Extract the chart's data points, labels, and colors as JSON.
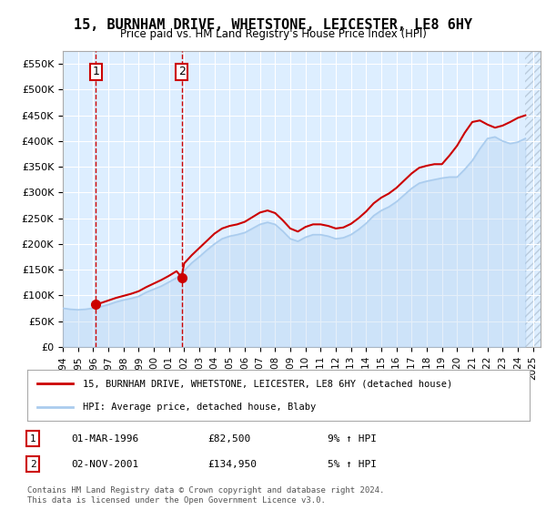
{
  "title": "15, BURNHAM DRIVE, WHETSTONE, LEICESTER, LE8 6HY",
  "subtitle": "Price paid vs. HM Land Registry's House Price Index (HPI)",
  "ylabel": "",
  "ylim": [
    0,
    575000
  ],
  "yticks": [
    0,
    50000,
    100000,
    150000,
    200000,
    250000,
    300000,
    350000,
    400000,
    450000,
    500000,
    550000
  ],
  "ytick_labels": [
    "£0",
    "£50K",
    "£100K",
    "£150K",
    "£200K",
    "£250K",
    "£300K",
    "£350K",
    "£400K",
    "£450K",
    "£500K",
    "£550K"
  ],
  "background_color": "#ffffff",
  "plot_bg_color": "#ddeeff",
  "hatch_color": "#bbccdd",
  "grid_color": "#ffffff",
  "sale1_date": 1996.17,
  "sale1_price": 82500,
  "sale2_date": 2001.84,
  "sale2_price": 134950,
  "sale1_label": "1",
  "sale2_label": "2",
  "sale_color": "#cc0000",
  "hpi_color": "#aaccee",
  "legend_sale": "15, BURNHAM DRIVE, WHETSTONE, LEICESTER, LE8 6HY (detached house)",
  "legend_hpi": "HPI: Average price, detached house, Blaby",
  "footer1": "Contains HM Land Registry data © Crown copyright and database right 2024.",
  "footer2": "This data is licensed under the Open Government Licence v3.0.",
  "table_rows": [
    {
      "num": "1",
      "date": "01-MAR-1996",
      "price": "£82,500",
      "hpi": "9% ↑ HPI"
    },
    {
      "num": "2",
      "date": "02-NOV-2001",
      "price": "£134,950",
      "hpi": "5% ↑ HPI"
    }
  ],
  "hpi_data": {
    "years": [
      1994.0,
      1994.5,
      1995.0,
      1995.5,
      1996.0,
      1996.5,
      1997.0,
      1997.5,
      1998.0,
      1998.5,
      1999.0,
      1999.5,
      2000.0,
      2000.5,
      2001.0,
      2001.5,
      2002.0,
      2002.5,
      2003.0,
      2003.5,
      2004.0,
      2004.5,
      2005.0,
      2005.5,
      2006.0,
      2006.5,
      2007.0,
      2007.5,
      2008.0,
      2008.5,
      2009.0,
      2009.5,
      2010.0,
      2010.5,
      2011.0,
      2011.5,
      2012.0,
      2012.5,
      2013.0,
      2013.5,
      2014.0,
      2014.5,
      2015.0,
      2015.5,
      2016.0,
      2016.5,
      2017.0,
      2017.5,
      2018.0,
      2018.5,
      2019.0,
      2019.5,
      2020.0,
      2020.5,
      2021.0,
      2021.5,
      2022.0,
      2022.5,
      2023.0,
      2023.5,
      2024.0,
      2024.5
    ],
    "values": [
      75000,
      73000,
      72000,
      73000,
      75000,
      78000,
      82000,
      87000,
      91000,
      94000,
      98000,
      106000,
      112000,
      118000,
      126000,
      134000,
      148000,
      163000,
      175000,
      188000,
      200000,
      210000,
      215000,
      218000,
      222000,
      230000,
      238000,
      242000,
      238000,
      225000,
      210000,
      205000,
      213000,
      218000,
      218000,
      215000,
      210000,
      212000,
      218000,
      228000,
      240000,
      255000,
      265000,
      272000,
      282000,
      295000,
      308000,
      318000,
      322000,
      325000,
      328000,
      330000,
      330000,
      345000,
      362000,
      385000,
      405000,
      408000,
      400000,
      395000,
      398000,
      405000
    ]
  },
  "sale_line_data": {
    "years": [
      1994.0,
      1994.5,
      1995.0,
      1995.5,
      1996.0,
      1996.17,
      1996.5,
      1997.0,
      1997.5,
      1998.0,
      1998.5,
      1999.0,
      1999.5,
      2000.0,
      2000.5,
      2001.0,
      2001.5,
      2001.84,
      2002.0,
      2002.5,
      2003.0,
      2003.5,
      2004.0,
      2004.5,
      2005.0,
      2005.5,
      2006.0,
      2006.5,
      2007.0,
      2007.5,
      2008.0,
      2008.5,
      2009.0,
      2009.5,
      2010.0,
      2010.5,
      2011.0,
      2011.5,
      2012.0,
      2012.5,
      2013.0,
      2013.5,
      2014.0,
      2014.5,
      2015.0,
      2015.5,
      2016.0,
      2016.5,
      2017.0,
      2017.5,
      2018.0,
      2018.5,
      2019.0,
      2019.5,
      2020.0,
      2020.5,
      2021.0,
      2021.5,
      2022.0,
      2022.5,
      2023.0,
      2023.5,
      2024.0,
      2024.5
    ],
    "values": [
      null,
      null,
      null,
      null,
      null,
      82500,
      85000,
      90000,
      95000,
      99000,
      103000,
      108000,
      116000,
      123000,
      130000,
      138000,
      147000,
      134950,
      162000,
      178000,
      192000,
      206000,
      220000,
      230000,
      235000,
      238000,
      243000,
      252000,
      261000,
      265000,
      260000,
      246000,
      230000,
      224000,
      233000,
      238000,
      238000,
      235000,
      230000,
      232000,
      239000,
      250000,
      263000,
      279000,
      290000,
      298000,
      309000,
      323000,
      337000,
      348000,
      352000,
      355000,
      355000,
      372000,
      391000,
      416000,
      437000,
      440000,
      432000,
      426000,
      430000,
      437000,
      445000,
      450000
    ]
  },
  "xmin": 1994.0,
  "xmax": 2025.5,
  "shade_right_start": 2024.5
}
